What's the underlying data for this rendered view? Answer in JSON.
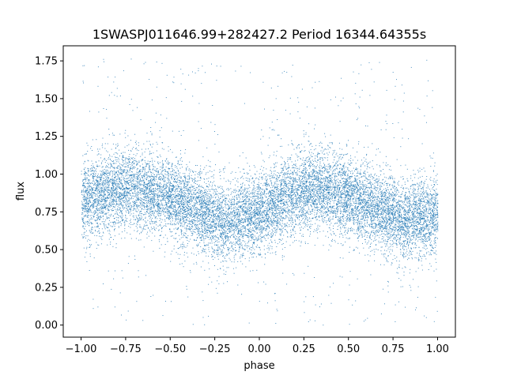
{
  "chart_data": {
    "type": "scatter",
    "title": "1SWASPJ011646.99+282427.2 Period 16344.64355s",
    "xlabel": "phase",
    "ylabel": "flux",
    "xlim": [
      -1.1,
      1.1
    ],
    "ylim": [
      -0.08,
      1.85
    ],
    "x_ticks": [
      -1.0,
      -0.75,
      -0.5,
      -0.25,
      0.0,
      0.25,
      0.5,
      0.75,
      1.0
    ],
    "x_tick_labels": [
      "−1.00",
      "−0.75",
      "−0.50",
      "−0.25",
      "0.00",
      "0.25",
      "0.50",
      "0.75",
      "1.00"
    ],
    "y_ticks": [
      0.0,
      0.25,
      0.5,
      0.75,
      1.0,
      1.25,
      1.5,
      1.75
    ],
    "y_tick_labels": [
      "0.00",
      "0.25",
      "0.50",
      "0.75",
      "1.00",
      "1.25",
      "1.50",
      "1.75"
    ],
    "grid": false,
    "point_color": "#1f77b4",
    "series": [
      {
        "x_range": [
          -1.0,
          1.0
        ],
        "y_range": [
          0.0,
          1.78
        ],
        "trend_x": [
          -1.0,
          -0.75,
          -0.5,
          -0.25,
          -0.18,
          0.0,
          0.25,
          0.3,
          0.5,
          0.75,
          0.8,
          1.0
        ],
        "trend_y": [
          0.82,
          0.92,
          0.85,
          0.7,
          0.68,
          0.75,
          0.9,
          0.92,
          0.85,
          0.72,
          0.7,
          0.74
        ],
        "scatter_sd": 0.13,
        "n_points": 14000
      }
    ]
  }
}
